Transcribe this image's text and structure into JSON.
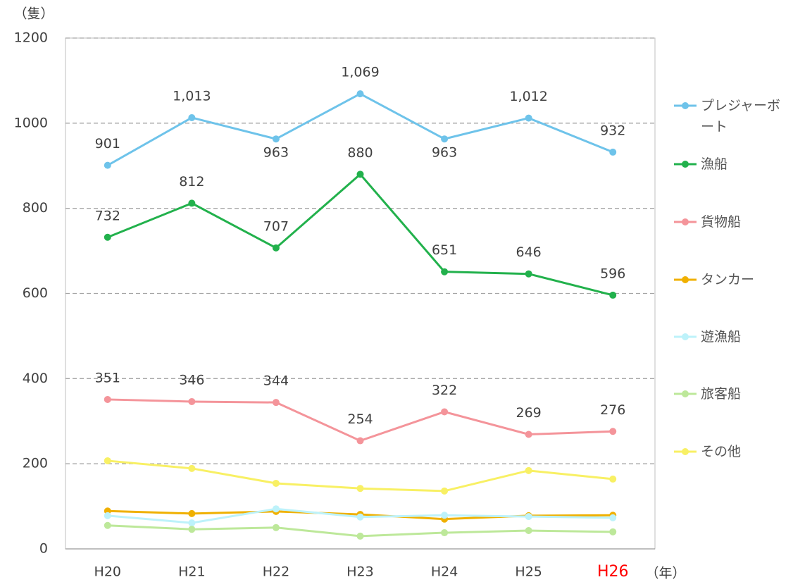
{
  "chart_data": {
    "type": "line",
    "y_unit": "（隻）",
    "x_unit": "（年）",
    "categories": [
      "H20",
      "H21",
      "H22",
      "H23",
      "H24",
      "H25",
      "H26"
    ],
    "highlight_category_index": 6,
    "highlight_color": "#ff0000",
    "series": [
      {
        "name": "プレジャーボート",
        "color": "#6ec3ea",
        "values": [
          901,
          1013,
          963,
          1069,
          963,
          1012,
          932
        ],
        "value_labels": [
          "901",
          "1,013",
          "963",
          "1,069",
          "963",
          "1,012",
          "932"
        ]
      },
      {
        "name": "漁船",
        "color": "#22b14c",
        "values": [
          732,
          812,
          707,
          880,
          651,
          646,
          596
        ],
        "value_labels": [
          "732",
          "812",
          "707",
          "880",
          "651",
          "646",
          "596"
        ]
      },
      {
        "name": "貨物船",
        "color": "#f4949a",
        "values": [
          351,
          346,
          344,
          254,
          322,
          269,
          276
        ],
        "value_labels": [
          "351",
          "346",
          "344",
          "254",
          "322",
          "269",
          "276"
        ]
      },
      {
        "name": "タンカー",
        "color": "#f0b000",
        "values": [
          89,
          83,
          88,
          81,
          70,
          78,
          79
        ]
      },
      {
        "name": "遊漁船",
        "color": "#bdf2fa",
        "values": [
          78,
          61,
          94,
          75,
          79,
          76,
          73
        ]
      },
      {
        "name": "旅客船",
        "color": "#bde89a",
        "values": [
          55,
          46,
          50,
          30,
          38,
          43,
          40
        ]
      },
      {
        "name": "その他",
        "color": "#f8f064",
        "values": [
          207,
          189,
          154,
          142,
          136,
          184,
          164
        ]
      }
    ],
    "ylim": [
      0,
      1200
    ],
    "yticks": [
      0,
      200,
      400,
      600,
      800,
      1000,
      1200
    ],
    "grid": true,
    "legend": "right"
  }
}
